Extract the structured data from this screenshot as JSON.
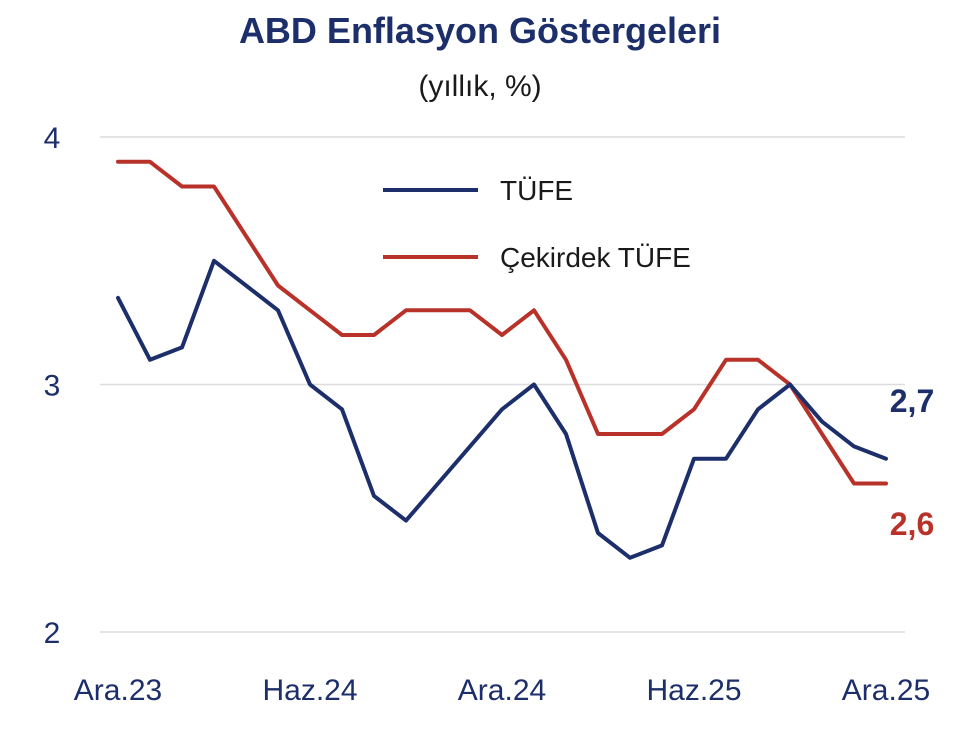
{
  "title": "ABD Enflasyon Göstergeleri",
  "subtitle": "(yıllık, %)",
  "colors": {
    "tufe": "#1c2f6b",
    "core": "#b8322a",
    "grid": "#dcdcdc",
    "axis_text": "#1c2f6b"
  },
  "chart_data": {
    "type": "line",
    "title": "ABD Enflasyon Göstergeleri",
    "subtitle": "(yıllık, %)",
    "xlabel": "",
    "ylabel": "",
    "x": [
      "2023-12",
      "2024-01",
      "2024-02",
      "2024-03",
      "2024-04",
      "2024-05",
      "2024-06",
      "2024-07",
      "2024-08",
      "2024-09",
      "2024-10",
      "2024-11",
      "2024-12",
      "2025-01",
      "2025-02",
      "2025-03",
      "2025-04",
      "2025-05",
      "2025-06",
      "2025-07",
      "2025-08",
      "2025-09",
      "2025-10",
      "2025-11",
      "2025-12"
    ],
    "x_tick_labels": [
      "Ara.23",
      "Haz.24",
      "Ara.24",
      "Haz.25",
      "Ara.25"
    ],
    "x_tick_index": [
      0,
      6,
      12,
      18,
      24
    ],
    "y_ticks": [
      2,
      3,
      4
    ],
    "y_tick_labels": [
      "2",
      "3",
      "4"
    ],
    "ylim": [
      2,
      4
    ],
    "grid": true,
    "legend_position": "top-center",
    "series": [
      {
        "name": "TÜFE",
        "color": "#1c2f6b",
        "values": [
          3.35,
          3.1,
          3.15,
          3.5,
          3.4,
          3.3,
          3.0,
          2.9,
          2.55,
          2.45,
          2.6,
          2.75,
          2.9,
          3.0,
          2.8,
          2.4,
          2.3,
          2.35,
          2.7,
          2.7,
          2.9,
          3.0,
          2.85,
          2.75,
          2.7
        ],
        "end_label": "2,7"
      },
      {
        "name": "Çekirdek TÜFE",
        "color": "#b8322a",
        "values": [
          3.9,
          3.9,
          3.8,
          3.8,
          3.6,
          3.4,
          3.3,
          3.2,
          3.2,
          3.3,
          3.3,
          3.3,
          3.2,
          3.3,
          3.1,
          2.8,
          2.8,
          2.8,
          2.9,
          3.1,
          3.1,
          3.0,
          2.8,
          2.6,
          2.6
        ],
        "end_label": "2,6"
      }
    ]
  }
}
